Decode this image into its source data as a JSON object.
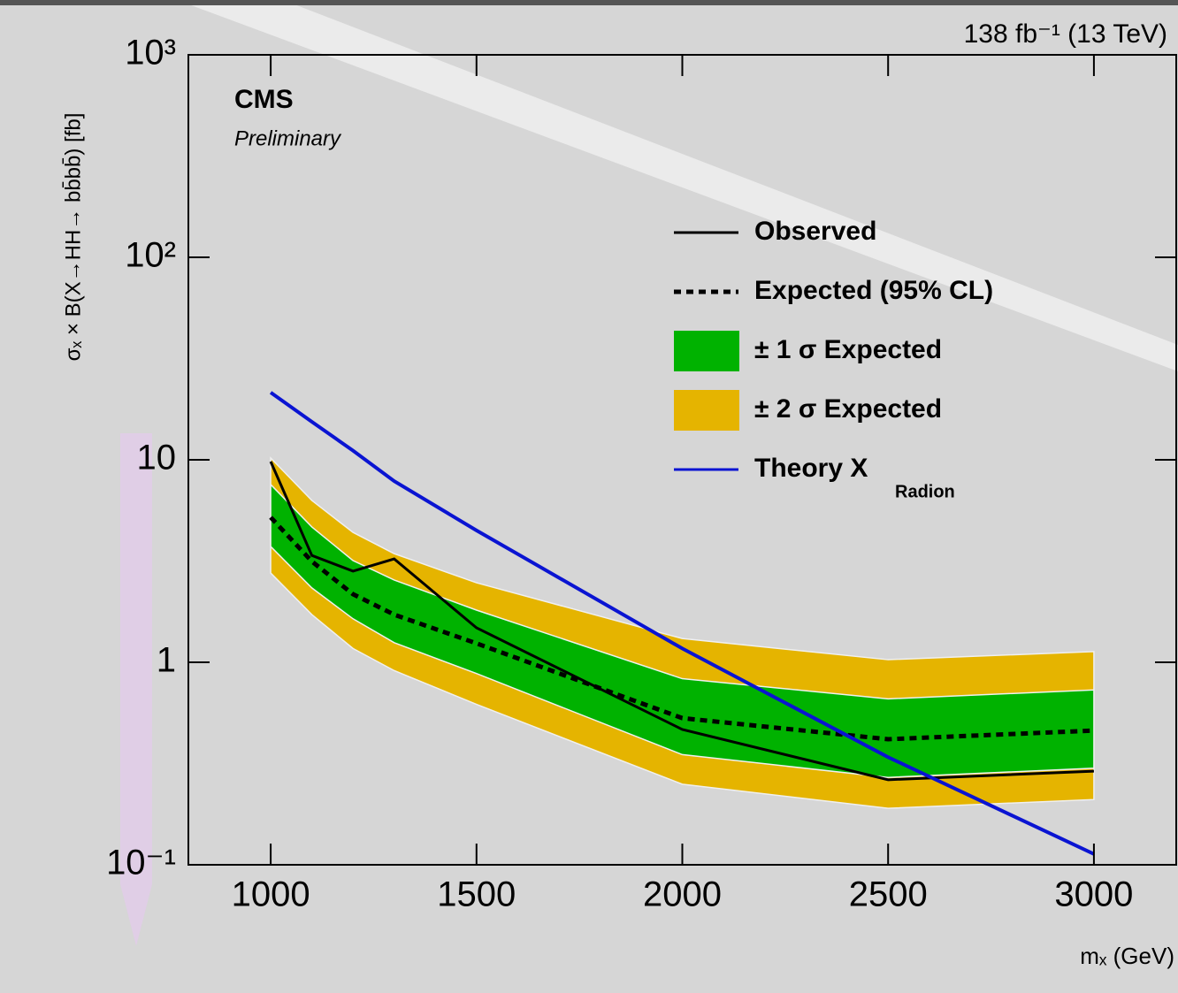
{
  "chart_data": {
    "type": "line",
    "log_y": true,
    "title": "138 fb⁻¹ (13 TeV)",
    "experiment": "CMS",
    "status": "Preliminary",
    "x_label": "mₓ (GeV)",
    "y_label": "σₓ × B(X→HH→ bb̄bb̄) [fb]",
    "x": [
      1000,
      1100,
      1200,
      1300,
      1500,
      2000,
      2500,
      3000
    ],
    "xlim": [
      800,
      3200
    ],
    "xticks": [
      1000,
      1500,
      2000,
      2500,
      3000
    ],
    "ylim": [
      0.1,
      1000
    ],
    "yticks": [
      {
        "value": 0.1,
        "label": "10⁻¹"
      },
      1,
      10,
      {
        "value": 100,
        "label": "10²"
      },
      {
        "value": 1000,
        "label": "10³"
      }
    ],
    "series": [
      {
        "name": "Observed",
        "color": "#000000",
        "style": "solid",
        "values": [
          9.8,
          3.37,
          2.82,
          3.24,
          1.48,
          0.466,
          0.263,
          0.29
        ]
      },
      {
        "name": "Expected (95% CL)",
        "color": "#000000",
        "style": "dotted",
        "values": [
          5.2,
          3.15,
          2.17,
          1.72,
          1.24,
          0.53,
          0.417,
          0.46
        ]
      },
      {
        "name": "± 1 σ Expected",
        "color": "#00b200",
        "style": "band",
        "lower": [
          3.73,
          2.33,
          1.64,
          1.25,
          0.88,
          0.35,
          0.27,
          0.3
        ],
        "upper": [
          7.55,
          4.66,
          3.18,
          2.55,
          1.81,
          0.83,
          0.66,
          0.73
        ]
      },
      {
        "name": "± 2 σ Expected",
        "color": "#e5b400",
        "style": "band",
        "lower": [
          2.76,
          1.72,
          1.17,
          0.91,
          0.62,
          0.25,
          0.19,
          0.21
        ],
        "upper": [
          10.2,
          6.3,
          4.38,
          3.44,
          2.47,
          1.31,
          1.03,
          1.13
        ]
      },
      {
        "name": "Theory X",
        "name_subscript": "Radion",
        "color": "#0a14d2",
        "style": "solid",
        "values": [
          21.5,
          15.4,
          11.1,
          7.85,
          4.48,
          1.17,
          0.34,
          0.113
        ]
      }
    ]
  }
}
